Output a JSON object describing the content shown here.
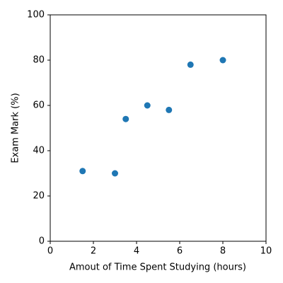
{
  "chart_data": {
    "type": "scatter",
    "xlabel": "Amout of Time Spent Studying (hours)",
    "ylabel": "Exam Mark (%)",
    "x": [
      1.5,
      3,
      3.5,
      4.5,
      5.5,
      6.5,
      8
    ],
    "values": [
      31,
      30,
      54,
      60,
      58,
      78,
      80
    ],
    "color": "#1f77b4",
    "xlim": [
      0,
      10
    ],
    "xticks": [
      0,
      2,
      4,
      6,
      8,
      10
    ],
    "ylim": [
      0,
      100
    ],
    "yticks": [
      0,
      20,
      40,
      60,
      80,
      100
    ],
    "grid": false
  }
}
